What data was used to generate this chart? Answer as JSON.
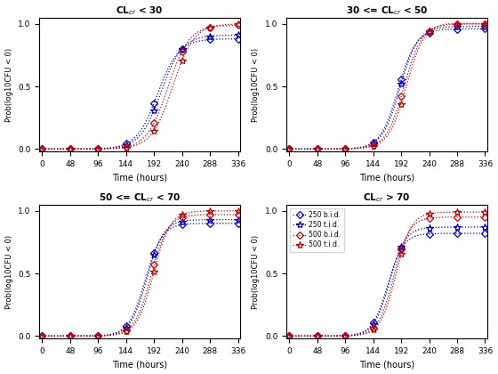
{
  "series": [
    {
      "label": "250 b.i.d.",
      "color": "#0000CC",
      "marker": "D",
      "markersize": 4,
      "linestyle": "dotted"
    },
    {
      "label": "250 t.i.d.",
      "color": "#0000CC",
      "marker": "*",
      "markersize": 6,
      "linestyle": "dotted"
    },
    {
      "label": "500 b.i.d.",
      "color": "#CC0000",
      "marker": "D",
      "markersize": 4,
      "linestyle": "dotted"
    },
    {
      "label": "500 t.i.d.",
      "color": "#CC0000",
      "marker": "*",
      "markersize": 6,
      "linestyle": "dotted"
    }
  ],
  "x_ticks": [
    0,
    48,
    96,
    144,
    192,
    240,
    288,
    336
  ],
  "xlim": [
    -5,
    340
  ],
  "ylim": [
    -0.02,
    1.05
  ],
  "y_ticks": [
    0,
    0.5,
    1
  ],
  "xlabel": "Time (hours)",
  "ylabel": "Prob(log10CFU < 0)",
  "panel_configs": [
    {
      "mid": 210,
      "k": 0.055,
      "offsets": [
        -12,
        -6,
        6,
        14
      ],
      "scales": [
        0.88,
        0.91,
        0.99,
        1.0
      ]
    },
    {
      "mid": 193,
      "k": 0.065,
      "offsets": [
        -6,
        -3,
        4,
        8
      ],
      "scales": [
        0.96,
        0.98,
        1.0,
        1.01
      ]
    },
    {
      "mid": 183,
      "k": 0.07,
      "offsets": [
        -6,
        -3,
        4,
        8
      ],
      "scales": [
        0.9,
        0.93,
        0.97,
        1.0
      ]
    },
    {
      "mid": 175,
      "k": 0.075,
      "offsets": [
        -6,
        -3,
        4,
        8
      ],
      "scales": [
        0.82,
        0.87,
        0.95,
        0.99
      ]
    }
  ],
  "titles": [
    "CL_{cr} < 30",
    "30 <= CL_{cr} < 50",
    "50 <= CL_{cr} < 70",
    "CL_{cr} > 70"
  ]
}
